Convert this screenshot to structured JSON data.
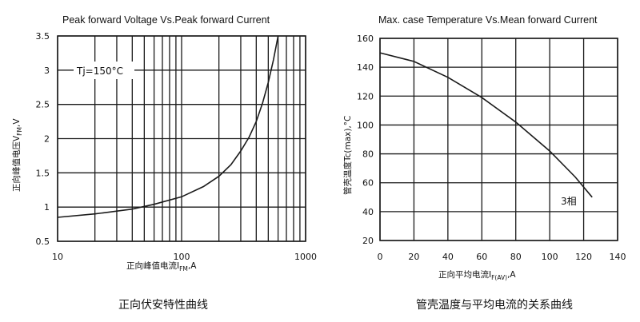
{
  "chart_data": [
    {
      "type": "line",
      "title": "Peak forward Voltage Vs.Peak forward Current",
      "xlabel": "正向峰值电流I",
      "xlabel_sub": "FM",
      "xlabel_unit": ",A",
      "ylabel": "正向峰值电压V",
      "ylabel_sub": "FM",
      "ylabel_unit": ",V",
      "x_scale": "log",
      "xlim": [
        10,
        1000
      ],
      "ylim": [
        0.5,
        3.5
      ],
      "x_ticks": [
        {
          "v": 10,
          "label": "10"
        },
        {
          "v": 100,
          "label": "100"
        },
        {
          "v": 1000,
          "label": "1000"
        }
      ],
      "y_ticks": [
        {
          "v": 0.5,
          "label": "0.5"
        },
        {
          "v": 1,
          "label": "1"
        },
        {
          "v": 1.5,
          "label": "1.5"
        },
        {
          "v": 2,
          "label": "2"
        },
        {
          "v": 2.5,
          "label": "2.5"
        },
        {
          "v": 3,
          "label": "3"
        },
        {
          "v": 3.5,
          "label": "3.5"
        }
      ],
      "grid": true,
      "annotation": "Tj=150°C",
      "caption": "正向伏安特性曲线",
      "series": [
        {
          "x": [
            10,
            20,
            40,
            60,
            100,
            150,
            200,
            250,
            300,
            350,
            400,
            450,
            500,
            550,
            600
          ],
          "y": [
            0.85,
            0.9,
            0.97,
            1.04,
            1.15,
            1.3,
            1.45,
            1.62,
            1.82,
            2.02,
            2.25,
            2.52,
            2.82,
            3.15,
            3.5
          ]
        }
      ]
    },
    {
      "type": "line",
      "title": "Max. case Temperature Vs.Mean forward Current",
      "xlabel": "正向平均电流I",
      "xlabel_sub": "F(AV)",
      "xlabel_unit": ",A",
      "ylabel": "管壳温度Tc(max),°C",
      "xlim": [
        0,
        140
      ],
      "ylim": [
        20,
        160
      ],
      "x_ticks": [
        {
          "v": 0,
          "label": "0"
        },
        {
          "v": 20,
          "label": "20"
        },
        {
          "v": 40,
          "label": "40"
        },
        {
          "v": 60,
          "label": "60"
        },
        {
          "v": 80,
          "label": "80"
        },
        {
          "v": 100,
          "label": "100"
        },
        {
          "v": 120,
          "label": "120"
        },
        {
          "v": 140,
          "label": "140"
        }
      ],
      "y_ticks": [
        {
          "v": 20,
          "label": "20"
        },
        {
          "v": 40,
          "label": "40"
        },
        {
          "v": 60,
          "label": "60"
        },
        {
          "v": 80,
          "label": "80"
        },
        {
          "v": 100,
          "label": "100"
        },
        {
          "v": 120,
          "label": "120"
        },
        {
          "v": 140,
          "label": "140"
        },
        {
          "v": 160,
          "label": "160"
        }
      ],
      "grid": true,
      "caption": "管壳温度与平均电流的关系曲线",
      "series": [
        {
          "name": "3相",
          "x": [
            0,
            20,
            40,
            60,
            80,
            100,
            115,
            125
          ],
          "y": [
            150,
            144,
            133,
            119,
            102,
            82,
            64,
            50
          ]
        }
      ]
    }
  ]
}
